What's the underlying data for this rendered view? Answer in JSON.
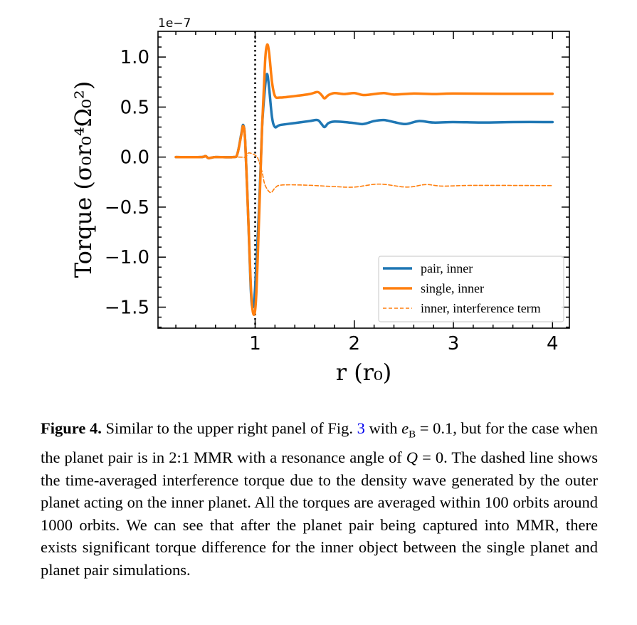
{
  "chart_data": {
    "type": "line",
    "xlabel": "r (r₀)",
    "ylabel": "Torque (σ₀r₀⁴Ω₀²)",
    "y_offset_label": "1e−7",
    "xlim": [
      0.02,
      4.17
    ],
    "ylim": [
      -1.71,
      1.257
    ],
    "x_ticks": [
      1,
      2,
      3,
      4
    ],
    "x_tick_labels": [
      "1",
      "2",
      "3",
      "4"
    ],
    "y_ticks": [
      -1.5,
      -1.0,
      -0.5,
      0.0,
      0.5,
      1.0
    ],
    "y_tick_labels": [
      "−1.5",
      "−1.0",
      "−0.5",
      "0.0",
      "0.5",
      "1.0"
    ],
    "grid": false,
    "legend_placement": "lower-right",
    "vertical_line": {
      "x": 1,
      "style": "dotted",
      "color": "#000000"
    },
    "series": [
      {
        "name": "pair, inner",
        "color": "#1f77b4",
        "style": "solid",
        "points": [
          [
            0.2,
            0
          ],
          [
            0.45,
            0
          ],
          [
            0.5,
            0.01
          ],
          [
            0.53,
            -0.01
          ],
          [
            0.6,
            0
          ],
          [
            0.78,
            0
          ],
          [
            0.82,
            0.03
          ],
          [
            0.86,
            0.23
          ],
          [
            0.88,
            0.32
          ],
          [
            0.9,
            0.15
          ],
          [
            0.93,
            -0.6
          ],
          [
            0.955,
            -1.3
          ],
          [
            0.975,
            -1.505
          ],
          [
            1.0,
            -1.3
          ],
          [
            1.04,
            -0.5
          ],
          [
            1.07,
            0.3
          ],
          [
            1.1,
            0.7
          ],
          [
            1.12,
            0.83
          ],
          [
            1.14,
            0.7
          ],
          [
            1.17,
            0.4
          ],
          [
            1.2,
            0.3
          ],
          [
            1.25,
            0.32
          ],
          [
            1.4,
            0.34
          ],
          [
            1.55,
            0.36
          ],
          [
            1.63,
            0.37
          ],
          [
            1.67,
            0.33
          ],
          [
            1.7,
            0.3
          ],
          [
            1.74,
            0.34
          ],
          [
            1.8,
            0.355
          ],
          [
            1.9,
            0.35
          ],
          [
            2.0,
            0.34
          ],
          [
            2.09,
            0.33
          ],
          [
            2.2,
            0.36
          ],
          [
            2.3,
            0.37
          ],
          [
            2.4,
            0.35
          ],
          [
            2.52,
            0.33
          ],
          [
            2.65,
            0.36
          ],
          [
            2.8,
            0.345
          ],
          [
            3.0,
            0.35
          ],
          [
            3.3,
            0.345
          ],
          [
            3.6,
            0.35
          ],
          [
            4.0,
            0.35
          ]
        ]
      },
      {
        "name": "single, inner",
        "color": "#ff7f0e",
        "style": "solid",
        "points": [
          [
            0.2,
            0
          ],
          [
            0.45,
            0
          ],
          [
            0.5,
            0.01
          ],
          [
            0.53,
            -0.01
          ],
          [
            0.6,
            0
          ],
          [
            0.78,
            0
          ],
          [
            0.82,
            0.03
          ],
          [
            0.86,
            0.22
          ],
          [
            0.88,
            0.31
          ],
          [
            0.9,
            0.15
          ],
          [
            0.93,
            -0.6
          ],
          [
            0.96,
            -1.35
          ],
          [
            0.985,
            -1.575
          ],
          [
            1.01,
            -1.4
          ],
          [
            1.04,
            -0.6
          ],
          [
            1.07,
            0.3
          ],
          [
            1.1,
            0.95
          ],
          [
            1.12,
            1.12
          ],
          [
            1.14,
            1.05
          ],
          [
            1.17,
            0.75
          ],
          [
            1.2,
            0.61
          ],
          [
            1.25,
            0.595
          ],
          [
            1.4,
            0.61
          ],
          [
            1.55,
            0.63
          ],
          [
            1.63,
            0.65
          ],
          [
            1.67,
            0.62
          ],
          [
            1.7,
            0.587
          ],
          [
            1.74,
            0.62
          ],
          [
            1.8,
            0.64
          ],
          [
            1.9,
            0.63
          ],
          [
            2.0,
            0.64
          ],
          [
            2.09,
            0.62
          ],
          [
            2.2,
            0.63
          ],
          [
            2.3,
            0.64
          ],
          [
            2.4,
            0.625
          ],
          [
            2.6,
            0.635
          ],
          [
            2.8,
            0.63
          ],
          [
            3.0,
            0.635
          ],
          [
            3.5,
            0.633
          ],
          [
            4.0,
            0.633
          ]
        ]
      },
      {
        "name": "inner, interference term",
        "color": "#ff7f0e",
        "style": "dashed",
        "points": [
          [
            0.2,
            0
          ],
          [
            0.8,
            0
          ],
          [
            0.9,
            0
          ],
          [
            0.93,
            0.04
          ],
          [
            0.98,
            0.03
          ],
          [
            1.02,
            0
          ],
          [
            1.04,
            -0.05
          ],
          [
            1.07,
            -0.15
          ],
          [
            1.1,
            -0.28
          ],
          [
            1.155,
            -0.355
          ],
          [
            1.2,
            -0.31
          ],
          [
            1.26,
            -0.28
          ],
          [
            1.5,
            -0.28
          ],
          [
            1.8,
            -0.295
          ],
          [
            2.0,
            -0.3
          ],
          [
            2.25,
            -0.27
          ],
          [
            2.53,
            -0.3
          ],
          [
            2.72,
            -0.275
          ],
          [
            2.89,
            -0.29
          ],
          [
            3.2,
            -0.283
          ],
          [
            4.0,
            -0.285
          ]
        ]
      }
    ]
  },
  "caption": {
    "label": "Figure 4.",
    "t1": " Similar to the upper right panel of Fig. ",
    "ref": "3",
    "t2": " with ",
    "math1_var": "e",
    "math1_sub": "B",
    "math1_rest": " = 0.1",
    "t3": ", but for the case when the planet pair is in 2:1 MMR with a resonance angle of ",
    "math2_var": "Q",
    "math2_rest": " = 0",
    "t4": ". The dashed line shows the time-averaged interference torque due to the density wave generated by the outer planet acting on the inner planet. All the torques are averaged within 100 orbits around 1000 orbits. We can see that after the planet pair being captured into MMR, there exists significant torque difference for the inner object between the single planet and planet pair simulations."
  }
}
